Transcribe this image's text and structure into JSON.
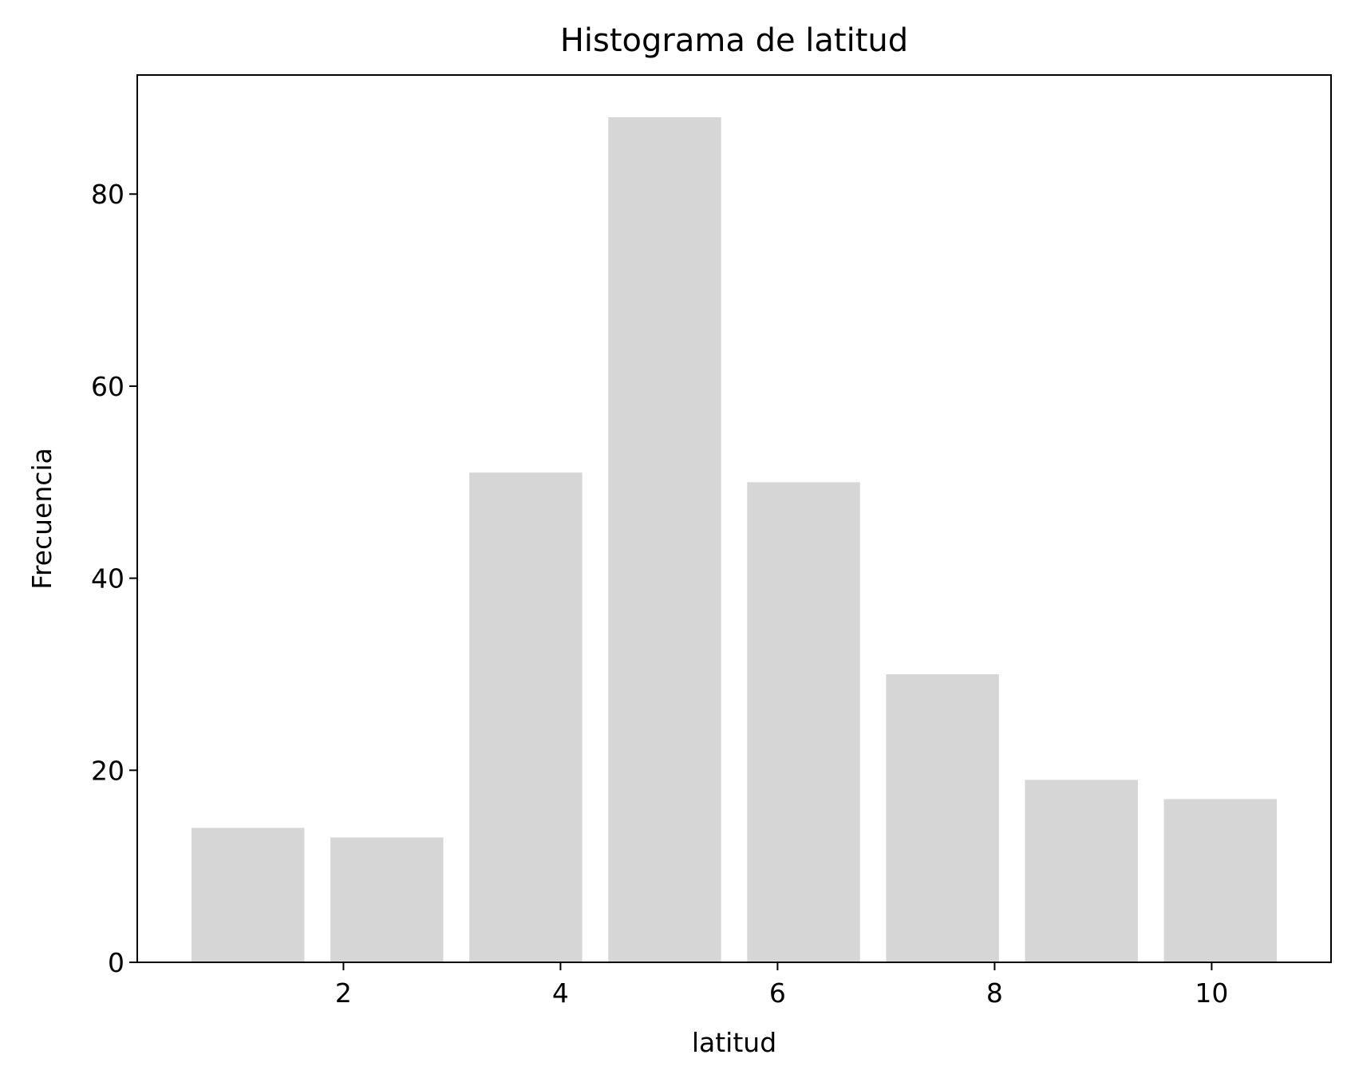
{
  "chart_data": {
    "type": "bar",
    "title": "Histograma de latitud",
    "xlabel": "latitud",
    "ylabel": "Frecuencia",
    "bins": [
      {
        "x_start": 0.6,
        "x_end": 1.64,
        "value": 14
      },
      {
        "x_start": 1.88,
        "x_end": 2.92,
        "value": 13
      },
      {
        "x_start": 3.16,
        "x_end": 4.2,
        "value": 51
      },
      {
        "x_start": 4.44,
        "x_end": 5.48,
        "value": 88
      },
      {
        "x_start": 5.72,
        "x_end": 6.76,
        "value": 50
      },
      {
        "x_start": 7.0,
        "x_end": 8.04,
        "value": 30
      },
      {
        "x_start": 8.28,
        "x_end": 9.32,
        "value": 19
      },
      {
        "x_start": 9.56,
        "x_end": 10.6,
        "value": 17
      }
    ],
    "xlim": [
      0.1,
      11.1
    ],
    "ylim": [
      0,
      92.4
    ],
    "x_ticks": [
      2,
      4,
      6,
      8,
      10
    ],
    "y_ticks": [
      0,
      20,
      40,
      60,
      80
    ],
    "bar_color": "#d6d6d6",
    "grid": false,
    "legend": false
  }
}
